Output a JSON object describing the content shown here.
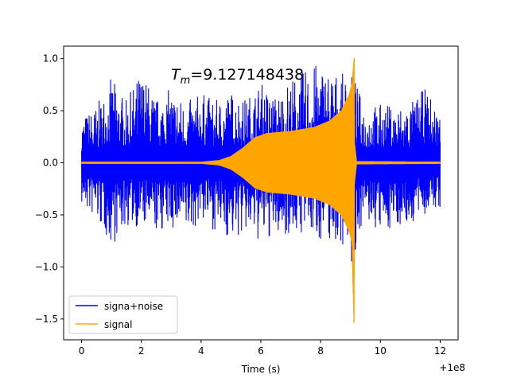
{
  "chart_data": {
    "type": "line",
    "xlabel": "Time (s)",
    "ylabel": "",
    "x_offset_label": "+1e8",
    "annotation": {
      "prefix": "T",
      "subscript": "m",
      "rest": "=9.127148438"
    },
    "xlim": [
      -0.6,
      12.6
    ],
    "ylim": [
      -1.7,
      1.12
    ],
    "xticks": [
      0,
      2,
      4,
      6,
      8,
      10,
      12
    ],
    "xtick_labels": [
      "0",
      "2",
      "4",
      "6",
      "8",
      "10",
      "12"
    ],
    "yticks": [
      1.0,
      0.5,
      0.0,
      -0.5,
      -1.0,
      -1.5
    ],
    "ytick_labels": [
      "1.0",
      "0.5",
      "0.0",
      "−0.5",
      "−1.0",
      "−1.5"
    ],
    "grid": false,
    "legend_position": "lower-left",
    "series": [
      {
        "name": "signa+noise",
        "color": "#0000ff",
        "x": [
          0,
          0.5,
          1,
          1.5,
          2,
          2.5,
          3,
          3.5,
          4,
          4.5,
          5,
          5.5,
          6,
          6.5,
          7,
          7.5,
          8,
          8.5,
          9,
          9.127,
          9.2,
          9.5,
          10,
          10.5,
          11,
          11.5,
          12
        ],
        "upper_envelope": [
          0.45,
          0.55,
          0.82,
          0.6,
          0.9,
          0.62,
          0.72,
          0.58,
          0.68,
          0.6,
          0.7,
          0.62,
          0.78,
          0.65,
          0.82,
          0.9,
          0.98,
          0.88,
          0.82,
          0.9,
          0.75,
          0.55,
          0.57,
          0.55,
          0.58,
          0.72,
          0.5
        ],
        "lower_envelope": [
          -0.42,
          -0.58,
          -0.8,
          -0.62,
          -0.62,
          -0.68,
          -0.64,
          -0.72,
          -0.56,
          -0.66,
          -0.75,
          -0.7,
          -0.78,
          -0.72,
          -0.68,
          -0.7,
          -0.74,
          -0.78,
          -0.8,
          -1.55,
          -0.68,
          -0.58,
          -0.7,
          -0.6,
          -0.62,
          -0.5,
          -0.45
        ]
      },
      {
        "name": "signal",
        "color": "#ffa500",
        "x": [
          0,
          4,
          4.6,
          5.0,
          5.4,
          5.8,
          6.2,
          7.0,
          7.8,
          8.3,
          8.7,
          8.95,
          9.05,
          9.12,
          9.13,
          9.2,
          12
        ],
        "upper_envelope": [
          0.005,
          0.005,
          0.02,
          0.06,
          0.14,
          0.24,
          0.28,
          0.3,
          0.34,
          0.4,
          0.5,
          0.65,
          0.75,
          1.0,
          0.2,
          0.01,
          0.005
        ],
        "lower_envelope": [
          -0.005,
          -0.005,
          -0.02,
          -0.06,
          -0.14,
          -0.24,
          -0.28,
          -0.3,
          -0.34,
          -0.4,
          -0.5,
          -0.65,
          -0.75,
          -1.58,
          -0.2,
          -0.01,
          -0.005
        ]
      }
    ]
  }
}
